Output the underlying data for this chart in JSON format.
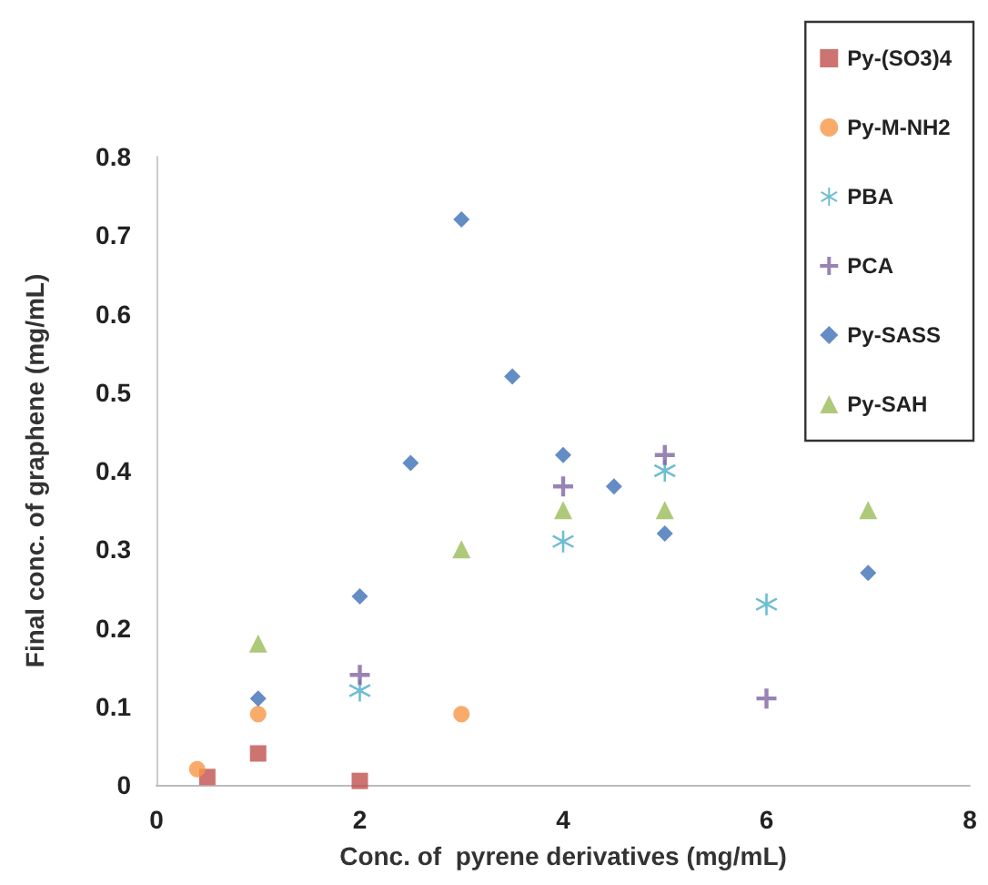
{
  "chart_data": {
    "type": "scatter",
    "xlabel": "Conc. of  pyrene derivatives (mg/mL)",
    "ylabel": "Final conc. of graphene (mg/mL)",
    "xlim": [
      0,
      8
    ],
    "xticks": [
      0,
      2,
      4,
      6,
      8
    ],
    "ylim": [
      0,
      0.8
    ],
    "yticks": [
      0,
      0.1,
      0.2,
      0.3,
      0.4,
      0.5,
      0.6,
      0.7,
      0.8
    ],
    "grid": false,
    "legend": "top right",
    "series": [
      {
        "name": "Py-(SO3)4",
        "color": "#c0504d",
        "marker": "square",
        "x": [
          0.5,
          1,
          2
        ],
        "values": [
          0.01,
          0.04,
          0.005
        ]
      },
      {
        "name": "Py-M-NH2",
        "color": "#f79646",
        "marker": "circle",
        "x": [
          0.4,
          1,
          3
        ],
        "values": [
          0.02,
          0.09,
          0.09
        ]
      },
      {
        "name": "PBA",
        "color": "#4bacc6",
        "marker": "star",
        "x": [
          2,
          4,
          5,
          6
        ],
        "values": [
          0.12,
          0.31,
          0.4,
          0.23
        ]
      },
      {
        "name": "PCA",
        "color": "#8064a2",
        "marker": "cross",
        "x": [
          2,
          4,
          5,
          6
        ],
        "values": [
          0.14,
          0.38,
          0.42,
          0.11
        ]
      },
      {
        "name": "Py-SASS",
        "color": "#3d6fb6",
        "marker": "diamond",
        "x": [
          1,
          2,
          2.5,
          3,
          3.5,
          4,
          4.5,
          5,
          7
        ],
        "values": [
          0.11,
          0.24,
          0.41,
          0.72,
          0.52,
          0.42,
          0.38,
          0.32,
          0.27
        ]
      },
      {
        "name": "Py-SAH",
        "color": "#9bbb59",
        "marker": "triangle",
        "x": [
          1,
          3,
          4,
          5,
          7
        ],
        "values": [
          0.18,
          0.3,
          0.35,
          0.35,
          0.35
        ]
      }
    ]
  }
}
